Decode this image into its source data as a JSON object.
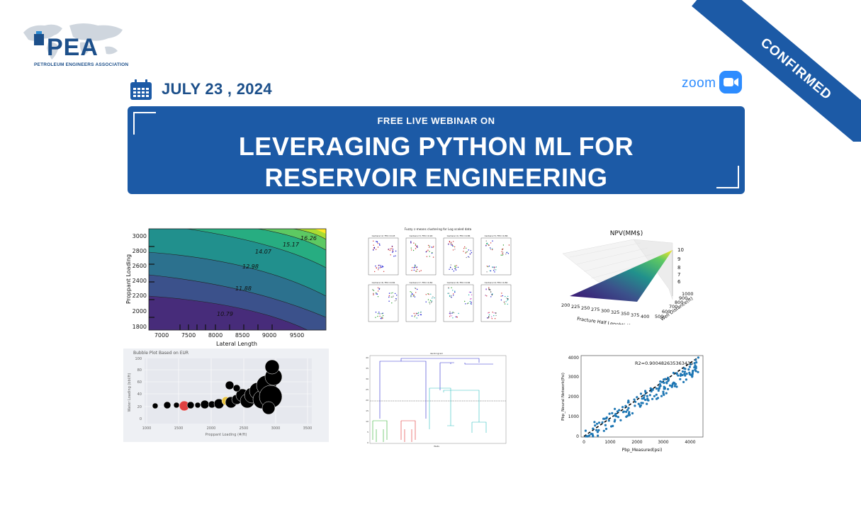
{
  "badge": {
    "label": "CONFIRMED",
    "color": "#1c5aa6"
  },
  "logo": {
    "mark": "PEA",
    "subtitle": "PETROLEUM ENGINEERS ASSOCIATION"
  },
  "event": {
    "date": "JULY 23 ,  2024",
    "platform": "zoom",
    "kicker": "FREE LIVE WEBINAR ON",
    "title_line1": "LEVERAGING PYTHON ML FOR",
    "title_line2": "RESERVOIR ENGINEERING"
  },
  "colors": {
    "primary": "#1c5aa6",
    "zoom": "#2d8cff"
  },
  "chart_data": [
    {
      "type": "contour",
      "xlabel": "Lateral Length",
      "ylabel": "Proppant Loading",
      "xticks": [
        "7000",
        "7500",
        "8000",
        "8500",
        "9000",
        "9500"
      ],
      "yticks": [
        "1800",
        "2000",
        "2200",
        "2400",
        "2600",
        "2800",
        "3000"
      ],
      "contour_labels": [
        "10.79",
        "11.88",
        "12.98",
        "14.07",
        "15.17",
        "16.26"
      ]
    },
    {
      "type": "scatter",
      "title": "Fuzzy c-means clustering for Log scaled data",
      "panels": [
        "Centers=2; FPC=0.93",
        "Centers=3; FPC=0.90",
        "Centers=4; FPC=0.86",
        "Centers=5; FPC=0.86",
        "Centers=6; FPC=0.82",
        "Centers=7; FPC=0.82",
        "Centers=8; FPC=0.84",
        "Centers=9; FPC=0.80"
      ]
    },
    {
      "type": "surface",
      "title": "NPV(MM$)",
      "xlabel": "Fracture Half Lenghth(ft)",
      "ylabel": "Well Distance(ft)",
      "xticks": [
        "200",
        "225",
        "250",
        "275",
        "300",
        "325",
        "350",
        "375",
        "400"
      ],
      "yticks": [
        "500",
        "600",
        "700",
        "800",
        "900",
        "1000"
      ],
      "zticks": [
        "6",
        "7",
        "8",
        "9",
        "10"
      ]
    },
    {
      "type": "scatter",
      "title": "Bubble Plot Based on EUR",
      "xlabel": "Proppant Loading (#/ft)",
      "ylabel": "Water Loading (bbl/ft)",
      "xticks": [
        "1000",
        "1500",
        "2000",
        "2500",
        "3000",
        "3500"
      ],
      "yticks": [
        "0",
        "20",
        "40",
        "60",
        "80",
        "100"
      ]
    },
    {
      "type": "dendrogram",
      "title": "dendrogram",
      "xlabel": "Wells",
      "yticks": [
        "0",
        "5",
        "10",
        "15",
        "20",
        "25",
        "30",
        "35",
        "40"
      ]
    },
    {
      "type": "scatter",
      "annotation": "R2=0.900482635363435",
      "xlabel": "Pbp_Measured(psi)",
      "ylabel": "Pbp_Neural Network(Psi)",
      "xticks": [
        "0",
        "1000",
        "2000",
        "3000",
        "4000"
      ],
      "yticks": [
        "0",
        "1000",
        "2000",
        "3000",
        "4000"
      ]
    }
  ]
}
